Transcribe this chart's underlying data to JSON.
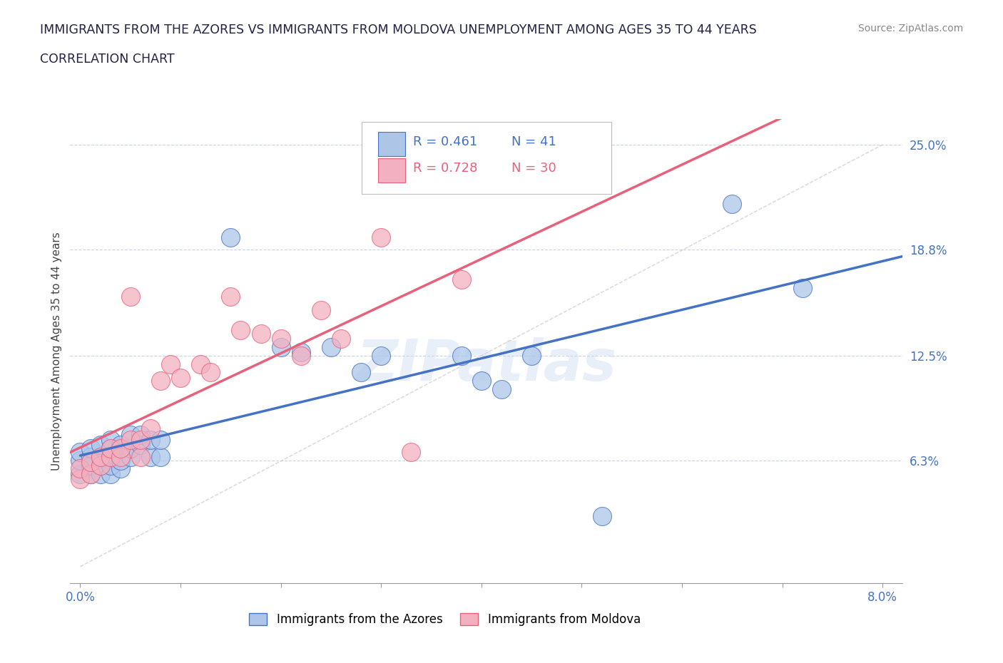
{
  "title_line1": "IMMIGRANTS FROM THE AZORES VS IMMIGRANTS FROM MOLDOVA UNEMPLOYMENT AMONG AGES 35 TO 44 YEARS",
  "title_line2": "CORRELATION CHART",
  "source_text": "Source: ZipAtlas.com",
  "ylabel": "Unemployment Among Ages 35 to 44 years",
  "xlim": [
    -0.001,
    0.082
  ],
  "ylim": [
    -0.01,
    0.265
  ],
  "xticks": [
    0.0,
    0.01,
    0.02,
    0.03,
    0.04,
    0.05,
    0.06,
    0.07,
    0.08
  ],
  "xticklabels": [
    "0.0%",
    "",
    "",
    "",
    "",
    "",
    "",
    "",
    "8.0%"
  ],
  "ytick_values": [
    0.063,
    0.125,
    0.188,
    0.25
  ],
  "ytick_labels": [
    "6.3%",
    "12.5%",
    "18.8%",
    "25.0%"
  ],
  "azores_R": 0.461,
  "azores_N": 41,
  "moldova_R": 0.728,
  "moldova_N": 30,
  "color_azores": "#adc6e8",
  "color_moldova": "#f2b0c0",
  "color_azores_line": "#4472c4",
  "color_moldova_line": "#e8607a",
  "color_diag": "#cccccc",
  "watermark": "ZIPatlas",
  "azores_x": [
    0.0,
    0.0,
    0.0,
    0.001,
    0.001,
    0.001,
    0.001,
    0.002,
    0.002,
    0.002,
    0.002,
    0.003,
    0.003,
    0.003,
    0.003,
    0.003,
    0.004,
    0.004,
    0.004,
    0.005,
    0.005,
    0.005,
    0.006,
    0.006,
    0.007,
    0.007,
    0.008,
    0.008,
    0.015,
    0.02,
    0.022,
    0.025,
    0.028,
    0.03,
    0.038,
    0.04,
    0.042,
    0.045,
    0.052,
    0.065,
    0.072
  ],
  "azores_y": [
    0.055,
    0.063,
    0.068,
    0.055,
    0.06,
    0.065,
    0.07,
    0.055,
    0.06,
    0.065,
    0.072,
    0.055,
    0.06,
    0.065,
    0.07,
    0.075,
    0.058,
    0.063,
    0.072,
    0.065,
    0.07,
    0.078,
    0.072,
    0.078,
    0.065,
    0.075,
    0.065,
    0.075,
    0.195,
    0.13,
    0.127,
    0.13,
    0.115,
    0.125,
    0.125,
    0.11,
    0.105,
    0.125,
    0.03,
    0.215,
    0.165
  ],
  "moldova_x": [
    0.0,
    0.0,
    0.001,
    0.001,
    0.002,
    0.002,
    0.003,
    0.003,
    0.004,
    0.004,
    0.005,
    0.005,
    0.006,
    0.006,
    0.007,
    0.008,
    0.009,
    0.01,
    0.012,
    0.013,
    0.015,
    0.016,
    0.018,
    0.02,
    0.022,
    0.024,
    0.026,
    0.03,
    0.033,
    0.038
  ],
  "moldova_y": [
    0.052,
    0.058,
    0.055,
    0.062,
    0.06,
    0.065,
    0.065,
    0.07,
    0.065,
    0.07,
    0.075,
    0.16,
    0.065,
    0.075,
    0.082,
    0.11,
    0.12,
    0.112,
    0.12,
    0.115,
    0.16,
    0.14,
    0.138,
    0.135,
    0.125,
    0.152,
    0.135,
    0.195,
    0.068,
    0.17
  ]
}
